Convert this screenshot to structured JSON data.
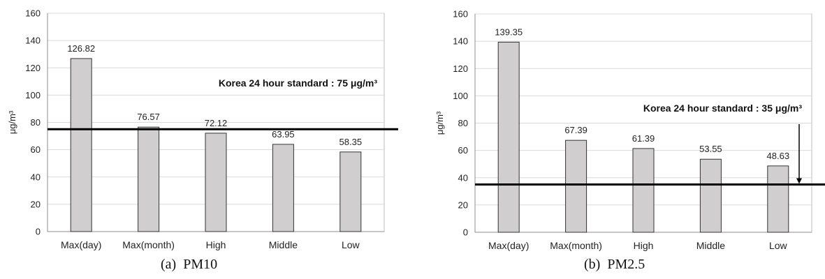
{
  "captions": {
    "a": "(a)  PM10",
    "b": "(b)  PM2.5"
  },
  "colors": {
    "bar_fill": "#d0cecf",
    "bar_stroke": "#333333",
    "grid": "#d9d9d9",
    "standard_line": "#000000"
  },
  "chart_data": [
    {
      "type": "bar",
      "title": "",
      "xlabel": "",
      "ylabel": "μg/m³",
      "ylim": [
        0,
        160
      ],
      "yticks": [
        0,
        20,
        40,
        60,
        80,
        100,
        120,
        140,
        160
      ],
      "grid": true,
      "categories": [
        "Max(day)",
        "Max(month)",
        "High",
        "Middle",
        "Low"
      ],
      "values": [
        126.82,
        76.57,
        72.12,
        63.95,
        58.35
      ],
      "data_labels": [
        "126.82",
        "76.57",
        "72.12",
        "63.95",
        "58.35"
      ],
      "reference_line": {
        "value": 75,
        "label": "Korea 24 hour standard : 75 μg/m³"
      }
    },
    {
      "type": "bar",
      "title": "",
      "xlabel": "",
      "ylabel": "μg/m³",
      "ylim": [
        0,
        160
      ],
      "yticks": [
        0,
        20,
        40,
        60,
        80,
        100,
        120,
        140,
        160
      ],
      "grid": true,
      "categories": [
        "Max(day)",
        "Max(month)",
        "High",
        "Middle",
        "Low"
      ],
      "values": [
        139.35,
        67.39,
        61.39,
        53.55,
        48.63
      ],
      "data_labels": [
        "139.35",
        "67.39",
        "61.39",
        "53.55",
        "48.63"
      ],
      "reference_line": {
        "value": 35,
        "label": "Korea 24 hour standard : 35 μg/m³"
      }
    }
  ]
}
